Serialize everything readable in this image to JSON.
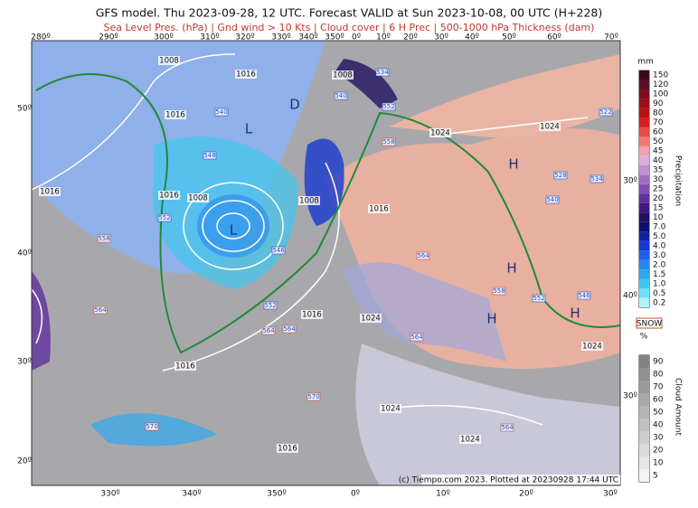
{
  "header": {
    "title": "GFS model. Thu 2023-09-28, 12 UTC. Forecast VALID at Sun 2023-10-08, 00 UTC (H+228)",
    "subtitle": "Sea Level Pres. (hPa) | Gnd wind > 10 Kts | Cloud cover | 6 H Prec | 500-1000 hPa Thickness (dam)"
  },
  "map": {
    "top_lon_labels": [
      "280º",
      "290º",
      "300º",
      "310º",
      "320º",
      "330º",
      "340º",
      "350º",
      "0º",
      "10º",
      "20º",
      "30º",
      "40º",
      "50º",
      "60º",
      "70º"
    ],
    "bottom_lon_labels": [
      "330º",
      "340º",
      "350º",
      "0º",
      "10º",
      "20º",
      "30º"
    ],
    "left_lat_labels": [
      "50º",
      "40º",
      "30º",
      "20º"
    ],
    "right_lat_labels": [
      "30º",
      "40º",
      "30º"
    ],
    "pressure_labels": [
      "1008",
      "1016",
      "1008",
      "1016",
      "1024",
      "1024",
      "1016",
      "1016",
      "1008",
      "1008",
      "1016",
      "1016",
      "1024",
      "1016",
      "1024",
      "1024",
      "1016",
      "1024"
    ],
    "systems": [
      "L",
      "D",
      "L",
      "H",
      "H",
      "H",
      "H"
    ],
    "thickness_labels": [
      "534",
      "540",
      "540",
      "552",
      "558",
      "548",
      "546",
      "552",
      "558",
      "564",
      "552",
      "564",
      "564",
      "558",
      "552",
      "546",
      "564",
      "564",
      "570",
      "570",
      "564",
      "528",
      "534",
      "522",
      "540"
    ]
  },
  "precip_legend": {
    "unit": "mm",
    "title": "Precipitation",
    "levels": [
      "150",
      "120",
      "100",
      "90",
      "80",
      "70",
      "60",
      "50",
      "45",
      "40",
      "35",
      "30",
      "25",
      "20",
      "15",
      "10",
      "7.0",
      "5.0",
      "4.0",
      "3.0",
      "2.0",
      "1.5",
      "1.0",
      "0.5",
      "0.2"
    ],
    "colors": [
      "#3b0a1a",
      "#5a0f24",
      "#7a1020",
      "#9a0f18",
      "#b81414",
      "#d42020",
      "#e84a4a",
      "#f07878",
      "#f0a0b0",
      "#d8b0d8",
      "#c090d0",
      "#a070c0",
      "#8050b0",
      "#6030a0",
      "#401880",
      "#201060",
      "#101070",
      "#1020a0",
      "#1838d0",
      "#2060e8",
      "#2888f0",
      "#30a8f0",
      "#40c8f0",
      "#70e0f8",
      "#b0f4fc"
    ],
    "snow_label": "SNOW"
  },
  "cloud_legend": {
    "unit": "%",
    "title": "Cloud Amount",
    "levels": [
      "90",
      "80",
      "70",
      "60",
      "50",
      "40",
      "30",
      "20",
      "10",
      "5"
    ]
  },
  "footer": {
    "credit": "(c) Tiempo.com 2023. Plotted at 20230928 17:44 UTC"
  }
}
